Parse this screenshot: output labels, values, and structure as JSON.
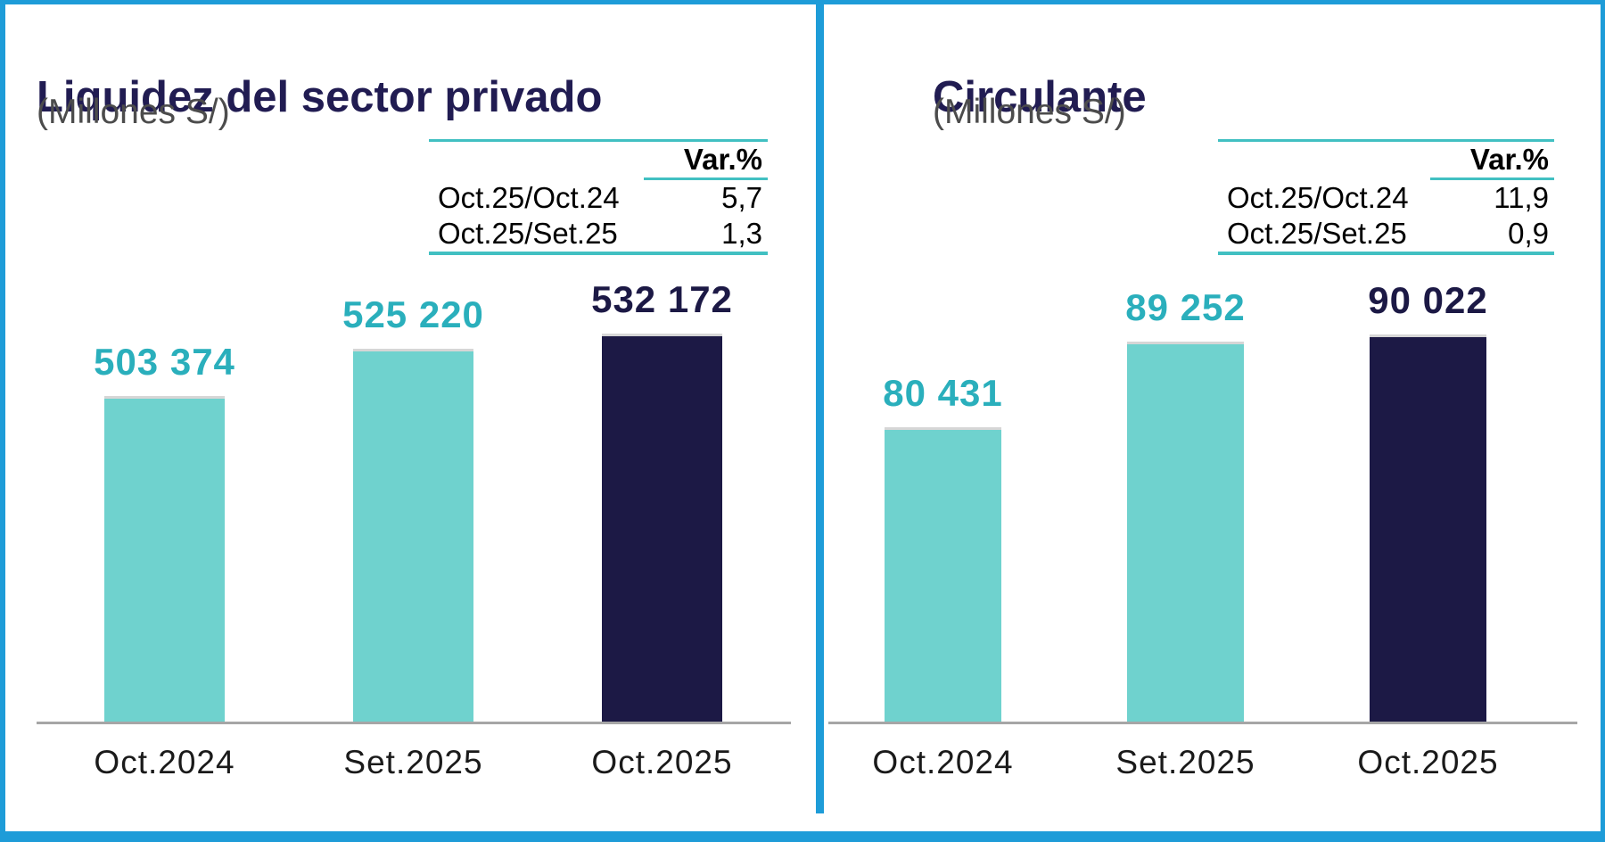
{
  "colors": {
    "frame_blue": "#1e9cd8",
    "teal_bar": "#6fd2ce",
    "teal_text": "#2aafbc",
    "navy": "#1c1945",
    "title_navy": "#211c52",
    "subtitle_gray": "#4c4c4c",
    "axis_gray": "#a6a6a6",
    "table_line_teal": "#41c0c2",
    "category_label": "#1a1a1a",
    "bar_top_cap": "#d6d6d6"
  },
  "chart_data": [
    {
      "type": "bar",
      "title": "Liquidez del sector privado",
      "subtitle": "(Millones S/)",
      "categories": [
        "Oct.2024",
        "Set.2025",
        "Oct.2025"
      ],
      "values": [
        503374,
        525220,
        532172
      ],
      "value_labels": [
        "503 374",
        "525 220",
        "532 172"
      ],
      "bar_colors": [
        "teal",
        "teal",
        "navy"
      ],
      "ylim": [
        354000,
        532172
      ],
      "grid": false,
      "legend": false,
      "var_table": {
        "header": "Var.%",
        "rows": [
          {
            "label": "Oct.25/Oct.24",
            "value": "5,7"
          },
          {
            "label": "Oct.25/Set.25",
            "value": "1,3"
          }
        ]
      }
    },
    {
      "type": "bar",
      "title": "Circulante",
      "subtitle": "(Millones S/)",
      "categories": [
        "Oct.2024",
        "Set.2025",
        "Oct.2025"
      ],
      "values": [
        80431,
        89252,
        90022
      ],
      "value_labels": [
        "80 431",
        "89 252",
        "90 022"
      ],
      "bar_colors": [
        "teal",
        "teal",
        "navy"
      ],
      "ylim": [
        50000,
        90022
      ],
      "grid": false,
      "legend": false,
      "var_table": {
        "header": "Var.%",
        "rows": [
          {
            "label": "Oct.25/Oct.24",
            "value": "11,9"
          },
          {
            "label": "Oct.25/Set.25",
            "value": "0,9"
          }
        ]
      }
    }
  ]
}
